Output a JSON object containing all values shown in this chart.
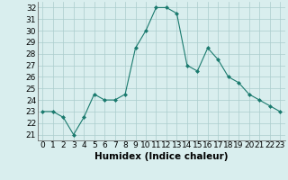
{
  "x": [
    0,
    1,
    2,
    3,
    4,
    5,
    6,
    7,
    8,
    9,
    10,
    11,
    12,
    13,
    14,
    15,
    16,
    17,
    18,
    19,
    20,
    21,
    22,
    23
  ],
  "y": [
    23.0,
    23.0,
    22.5,
    21.0,
    22.5,
    24.5,
    24.0,
    24.0,
    24.5,
    28.5,
    30.0,
    32.0,
    32.0,
    31.5,
    27.0,
    26.5,
    28.5,
    27.5,
    26.0,
    25.5,
    24.5,
    24.0,
    23.5,
    23.0
  ],
  "line_color": "#1a7a6e",
  "marker": "D",
  "marker_size": 2,
  "bg_color": "#d9eeee",
  "grid_color": "#aacccc",
  "xlabel": "Humidex (Indice chaleur)",
  "ylim_min": 20.5,
  "ylim_max": 32.5,
  "xlim_min": -0.5,
  "xlim_max": 23.5,
  "yticks": [
    21,
    22,
    23,
    24,
    25,
    26,
    27,
    28,
    29,
    30,
    31,
    32
  ],
  "xticks": [
    0,
    1,
    2,
    3,
    4,
    5,
    6,
    7,
    8,
    9,
    10,
    11,
    12,
    13,
    14,
    15,
    16,
    17,
    18,
    19,
    20,
    21,
    22,
    23
  ],
  "font_size": 6.5,
  "label_font_size": 7.5
}
